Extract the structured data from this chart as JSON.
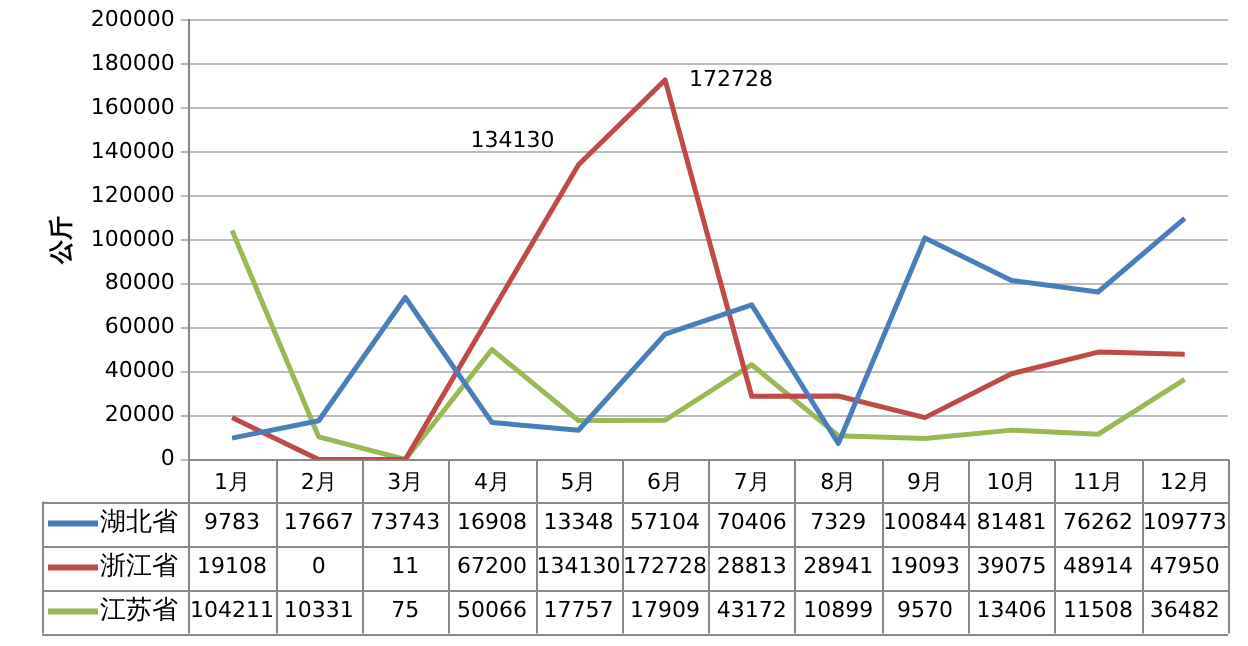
{
  "chart_data": {
    "type": "line",
    "ylabel": "公斤",
    "categories": [
      "1月",
      "2月",
      "3月",
      "4月",
      "5月",
      "6月",
      "7月",
      "8月",
      "9月",
      "10月",
      "11月",
      "12月"
    ],
    "series": [
      {
        "name": "湖北省",
        "color": "#4a7ebb",
        "values": [
          9783,
          17667,
          73743,
          16908,
          13348,
          57104,
          70406,
          7329,
          100844,
          81481,
          76262,
          109773
        ]
      },
      {
        "name": "浙江省",
        "color": "#be4b48",
        "values": [
          19108,
          0,
          11,
          67200,
          134130,
          172728,
          28813,
          28941,
          19093,
          39075,
          48914,
          47950
        ]
      },
      {
        "name": "江苏省",
        "color": "#98b954",
        "values": [
          104211,
          10331,
          75,
          50066,
          17757,
          17909,
          43172,
          10899,
          9570,
          13406,
          11508,
          36482
        ]
      }
    ],
    "ylim": [
      0,
      200000
    ],
    "yticks": [
      0,
      20000,
      40000,
      60000,
      80000,
      100000,
      120000,
      140000,
      160000,
      180000,
      200000
    ],
    "grid": "y",
    "legend": "bottom",
    "data_labels": true,
    "marker": "none",
    "line_style": "solid",
    "annotations": [
      {
        "text": "134130",
        "x": "5月",
        "y": 134130
      },
      {
        "text": "172728",
        "x": "6月",
        "y": 172728
      }
    ]
  }
}
